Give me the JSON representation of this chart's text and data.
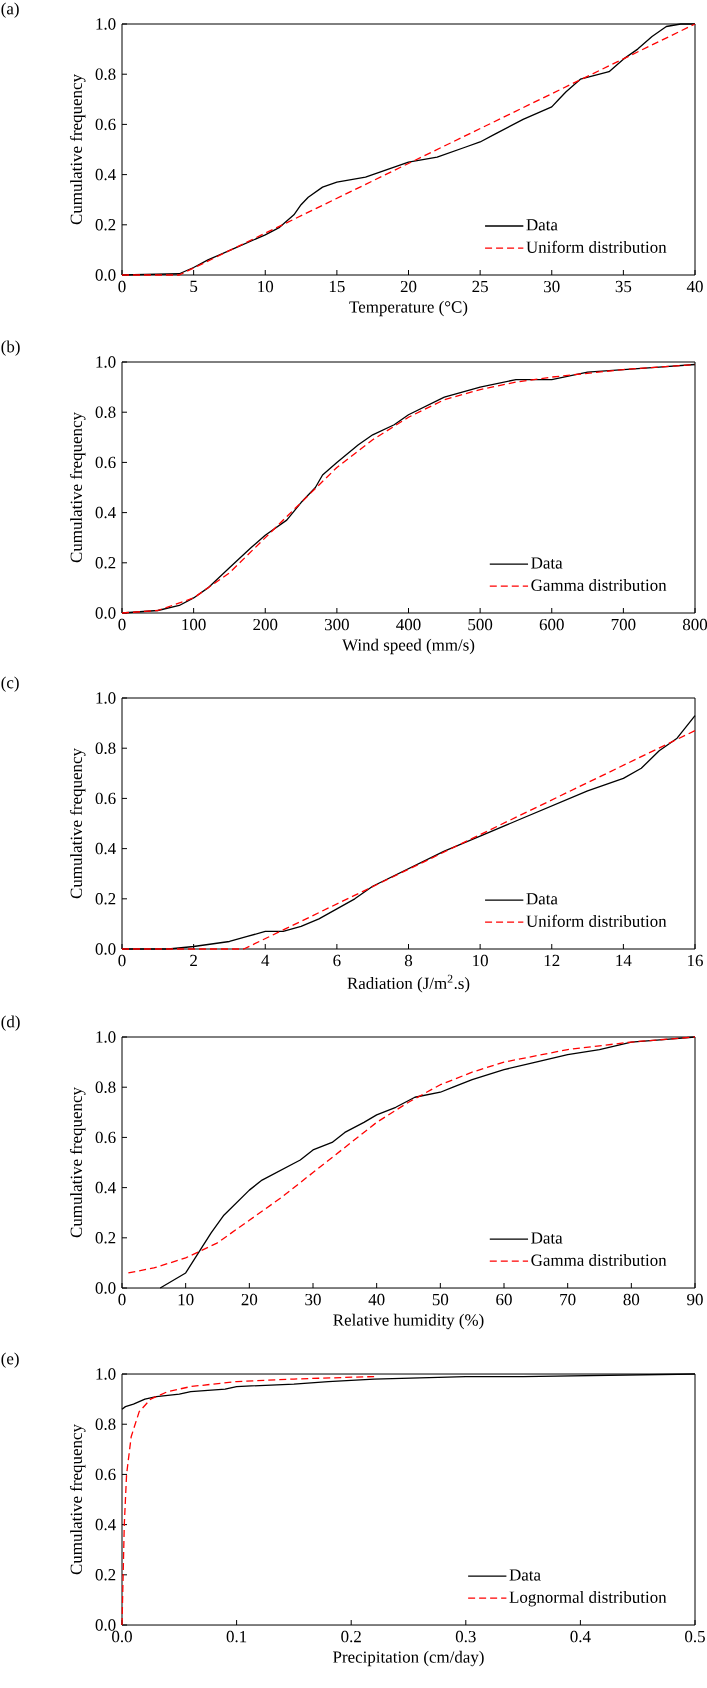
{
  "chart_data": [
    {
      "type": "line",
      "title": "(a)",
      "xlabel": "Temperature (°C)",
      "ylabel": "Cumulative frequency",
      "legend": "bottom right",
      "xlim": [
        0,
        40
      ],
      "ylim": [
        0,
        1
      ],
      "xticks": [
        0,
        5,
        10,
        15,
        20,
        25,
        30,
        35,
        40
      ],
      "yticks": [
        {
          "value": 0,
          "label": "0.0"
        },
        {
          "value": 0.2,
          "label": "0.2"
        },
        {
          "value": 0.4,
          "label": "0.4"
        },
        {
          "value": 0.6,
          "label": "0.6"
        },
        {
          "value": 0.8,
          "label": "0.8"
        },
        {
          "value": 1,
          "label": "1.0"
        }
      ],
      "series": [
        {
          "name": "Data",
          "color": "#000000",
          "line_style": "solid",
          "x": [
            0,
            4,
            5,
            6,
            8,
            10,
            11,
            12,
            12.5,
            13,
            14,
            15,
            17,
            18,
            20,
            22,
            24,
            25,
            26,
            28,
            30,
            30.5,
            31,
            32,
            34,
            35,
            36,
            37,
            38,
            39,
            40
          ],
          "values": [
            0,
            0.005,
            0.03,
            0.06,
            0.11,
            0.16,
            0.19,
            0.24,
            0.28,
            0.31,
            0.35,
            0.37,
            0.39,
            0.41,
            0.45,
            0.47,
            0.51,
            0.53,
            0.56,
            0.62,
            0.67,
            0.7,
            0.73,
            0.78,
            0.81,
            0.86,
            0.9,
            0.95,
            0.99,
            1,
            1
          ]
        },
        {
          "name": "Uniform distribution",
          "color": "#ff0000",
          "line_style": "dashed",
          "x": [
            0,
            4,
            40
          ],
          "values": [
            0,
            0,
            1
          ]
        }
      ]
    },
    {
      "type": "line",
      "title": "(b)",
      "xlabel": "Wind speed (mm/s)",
      "ylabel": "Cumulative frequency",
      "legend": "bottom right",
      "xlim": [
        0,
        800
      ],
      "ylim": [
        0,
        1
      ],
      "xticks": [
        0,
        100,
        200,
        300,
        400,
        500,
        600,
        700,
        800
      ],
      "yticks": [
        {
          "value": 0,
          "label": "0.0"
        },
        {
          "value": 0.2,
          "label": "0.2"
        },
        {
          "value": 0.4,
          "label": "0.4"
        },
        {
          "value": 0.6,
          "label": "0.6"
        },
        {
          "value": 0.8,
          "label": "0.8"
        },
        {
          "value": 1,
          "label": "1.0"
        }
      ],
      "series": [
        {
          "name": "Data",
          "color": "#000000",
          "line_style": "solid",
          "x": [
            0,
            50,
            80,
            100,
            120,
            150,
            180,
            200,
            230,
            250,
            270,
            280,
            300,
            330,
            350,
            380,
            400,
            450,
            500,
            550,
            600,
            650,
            700,
            750,
            800
          ],
          "values": [
            0,
            0.01,
            0.03,
            0.06,
            0.1,
            0.18,
            0.26,
            0.31,
            0.37,
            0.44,
            0.5,
            0.55,
            0.6,
            0.67,
            0.71,
            0.75,
            0.79,
            0.86,
            0.9,
            0.93,
            0.93,
            0.96,
            0.97,
            0.98,
            0.99
          ]
        },
        {
          "name": "Gamma distribution",
          "color": "#ff0000",
          "line_style": "dashed",
          "x": [
            0,
            50,
            100,
            150,
            200,
            250,
            300,
            350,
            400,
            450,
            500,
            550,
            600,
            700,
            800
          ],
          "values": [
            0,
            0.01,
            0.06,
            0.16,
            0.3,
            0.44,
            0.58,
            0.69,
            0.78,
            0.85,
            0.89,
            0.92,
            0.94,
            0.97,
            0.99
          ]
        }
      ]
    },
    {
      "type": "line",
      "title": "(c)",
      "xlabel": "Radiation (J/m$^{2}$.s)",
      "ylabel": "Cumulative frequency",
      "legend": "bottom right",
      "xlim": [
        0,
        16
      ],
      "ylim": [
        0,
        1
      ],
      "xticks": [
        0,
        2,
        4,
        6,
        8,
        10,
        12,
        14,
        16
      ],
      "yticks": [
        {
          "value": 0,
          "label": "0.0"
        },
        {
          "value": 0.2,
          "label": "0.2"
        },
        {
          "value": 0.4,
          "label": "0.4"
        },
        {
          "value": 0.6,
          "label": "0.6"
        },
        {
          "value": 0.8,
          "label": "0.8"
        },
        {
          "value": 1,
          "label": "1.0"
        }
      ],
      "series": [
        {
          "name": "Data",
          "color": "#000000",
          "line_style": "solid",
          "x": [
            0,
            1.3,
            2,
            3,
            3.5,
            4,
            4.5,
            5,
            5.5,
            6,
            6.5,
            7,
            8,
            9,
            10,
            11,
            12,
            13,
            14,
            14.5,
            15,
            15.5,
            16
          ],
          "values": [
            0,
            0,
            0.01,
            0.03,
            0.05,
            0.07,
            0.07,
            0.09,
            0.12,
            0.16,
            0.2,
            0.25,
            0.32,
            0.39,
            0.45,
            0.51,
            0.57,
            0.63,
            0.68,
            0.72,
            0.79,
            0.84,
            0.93
          ]
        },
        {
          "name": "Uniform distribution",
          "color": "#ff0000",
          "line_style": "dashed",
          "x": [
            0,
            3.4,
            16
          ],
          "values": [
            0,
            0,
            0.87
          ]
        }
      ]
    },
    {
      "type": "line",
      "title": "(d)",
      "xlabel": "Relative humidity (%)",
      "ylabel": "Cumulative frequency",
      "legend": "bottom right",
      "xlim": [
        0,
        90
      ],
      "ylim": [
        0,
        1
      ],
      "xticks": [
        0,
        10,
        20,
        30,
        40,
        50,
        60,
        70,
        80,
        90
      ],
      "yticks": [
        {
          "value": 0,
          "label": "0.0"
        },
        {
          "value": 0.2,
          "label": "0.2"
        },
        {
          "value": 0.4,
          "label": "0.4"
        },
        {
          "value": 0.6,
          "label": "0.6"
        },
        {
          "value": 0.8,
          "label": "0.8"
        },
        {
          "value": 1,
          "label": "1.0"
        }
      ],
      "series": [
        {
          "name": "Data",
          "color": "#000000",
          "line_style": "solid",
          "x": [
            6,
            8,
            10,
            11,
            12,
            14,
            16,
            18,
            20,
            22,
            25,
            28,
            30,
            33,
            35,
            38,
            40,
            43,
            46,
            50,
            52,
            55,
            60,
            65,
            70,
            75,
            80,
            85,
            90
          ],
          "values": [
            0,
            0.03,
            0.06,
            0.1,
            0.14,
            0.22,
            0.29,
            0.34,
            0.39,
            0.43,
            0.47,
            0.51,
            0.55,
            0.58,
            0.62,
            0.66,
            0.69,
            0.72,
            0.76,
            0.78,
            0.8,
            0.83,
            0.87,
            0.9,
            0.93,
            0.95,
            0.98,
            0.99,
            1
          ]
        },
        {
          "name": "Gamma distribution",
          "color": "#ff0000",
          "line_style": "dashed",
          "x": [
            1,
            5,
            10,
            15,
            20,
            25,
            30,
            35,
            40,
            45,
            50,
            55,
            60,
            70,
            80,
            90
          ],
          "values": [
            0.06,
            0.08,
            0.12,
            0.18,
            0.27,
            0.36,
            0.46,
            0.56,
            0.66,
            0.74,
            0.81,
            0.86,
            0.9,
            0.95,
            0.98,
            1
          ]
        }
      ]
    },
    {
      "type": "line",
      "title": "(e)",
      "xlabel": "Precipitation (cm/day)",
      "ylabel": "Cumulative frequency",
      "legend": "bottom right",
      "xlim": [
        0,
        0.5
      ],
      "ylim": [
        0,
        1
      ],
      "xticks": [
        {
          "value": 0,
          "label": "0.0"
        },
        {
          "value": 0.1,
          "label": "0.1"
        },
        {
          "value": 0.2,
          "label": "0.2"
        },
        {
          "value": 0.3,
          "label": "0.3"
        },
        {
          "value": 0.4,
          "label": "0.4"
        },
        {
          "value": 0.5,
          "label": "0.5"
        }
      ],
      "yticks": [
        {
          "value": 0,
          "label": "0.0"
        },
        {
          "value": 0.2,
          "label": "0.2"
        },
        {
          "value": 0.4,
          "label": "0.4"
        },
        {
          "value": 0.6,
          "label": "0.6"
        },
        {
          "value": 0.8,
          "label": "0.8"
        },
        {
          "value": 1,
          "label": "1.0"
        }
      ],
      "series": [
        {
          "name": "Data",
          "color": "#000000",
          "line_style": "solid",
          "x": [
            0,
            0.003,
            0.01,
            0.02,
            0.03,
            0.05,
            0.06,
            0.09,
            0.1,
            0.15,
            0.18,
            0.22,
            0.3,
            0.35,
            0.5
          ],
          "values": [
            0.86,
            0.87,
            0.88,
            0.9,
            0.91,
            0.92,
            0.93,
            0.94,
            0.95,
            0.96,
            0.97,
            0.98,
            0.99,
            0.99,
            1
          ]
        },
        {
          "name": "Lognormal distribution",
          "color": "#ff0000",
          "line_style": "dashed",
          "x": [
            0,
            0.001,
            0.002,
            0.004,
            0.008,
            0.015,
            0.025,
            0.04,
            0.06,
            0.1,
            0.15,
            0.22
          ],
          "values": [
            0,
            0.2,
            0.4,
            0.6,
            0.75,
            0.85,
            0.9,
            0.93,
            0.95,
            0.97,
            0.98,
            0.99
          ]
        }
      ]
    }
  ]
}
